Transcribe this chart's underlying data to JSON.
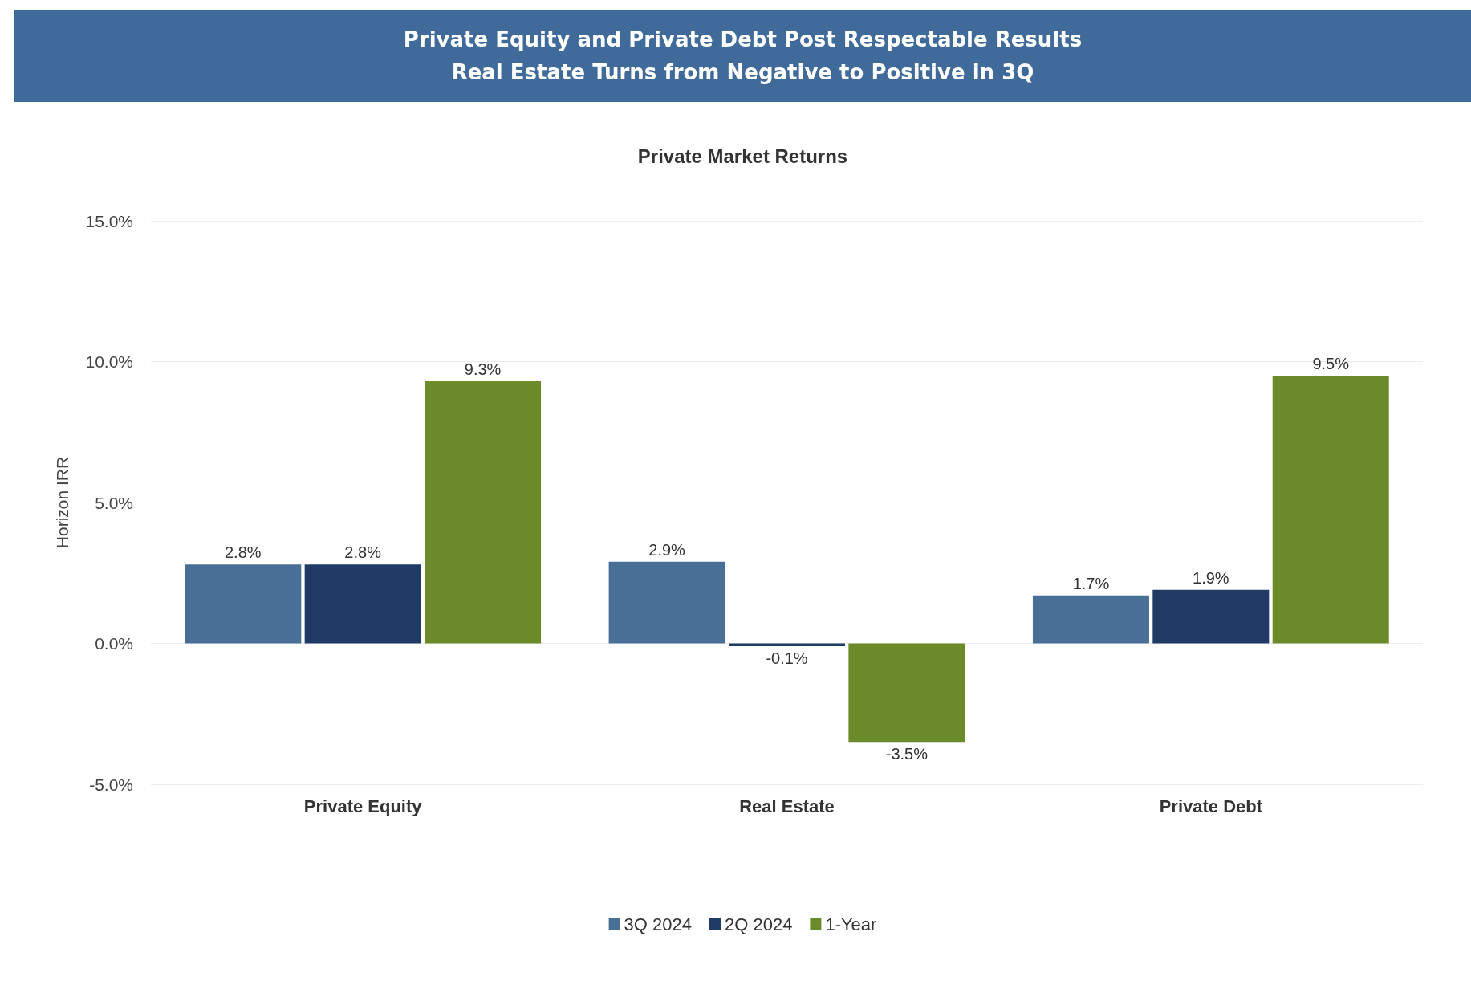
{
  "chart_data": {
    "type": "bar",
    "title": "Private Equity and Private Debt Post Respectable Results\nReal Estate Turns from Negative to Positive in 3Q",
    "subtitle": "Private Market Returns",
    "ylabel": "Horizon IRR",
    "categories": [
      "Private Equity",
      "Real Estate",
      "Private Debt"
    ],
    "series": [
      {
        "name": "3Q 2024",
        "color": "#4a6f96",
        "values": [
          2.8,
          2.9,
          1.7
        ],
        "value_labels": [
          "2.8%",
          "2.9%",
          "1.7%"
        ]
      },
      {
        "name": "2Q 2024",
        "color": "#1f3a64",
        "values": [
          2.8,
          -0.1,
          1.9
        ],
        "value_labels": [
          "2.8%",
          "-0.1%",
          "1.9%"
        ]
      },
      {
        "name": "1-Year",
        "color": "#6b8a2a",
        "values": [
          9.3,
          -3.5,
          9.5
        ],
        "value_labels": [
          "9.3%",
          "-3.5%",
          "9.5%"
        ]
      }
    ],
    "ylim": [
      -5,
      15
    ],
    "yticks": [
      {
        "value": -5,
        "label": "-5.0%"
      },
      {
        "value": 0,
        "label": "0.0%"
      },
      {
        "value": 5,
        "label": "5.0%"
      },
      {
        "value": 10,
        "label": "10.0%"
      },
      {
        "value": 15,
        "label": "15.0%"
      }
    ],
    "grid": "y",
    "legend": "bottom"
  }
}
